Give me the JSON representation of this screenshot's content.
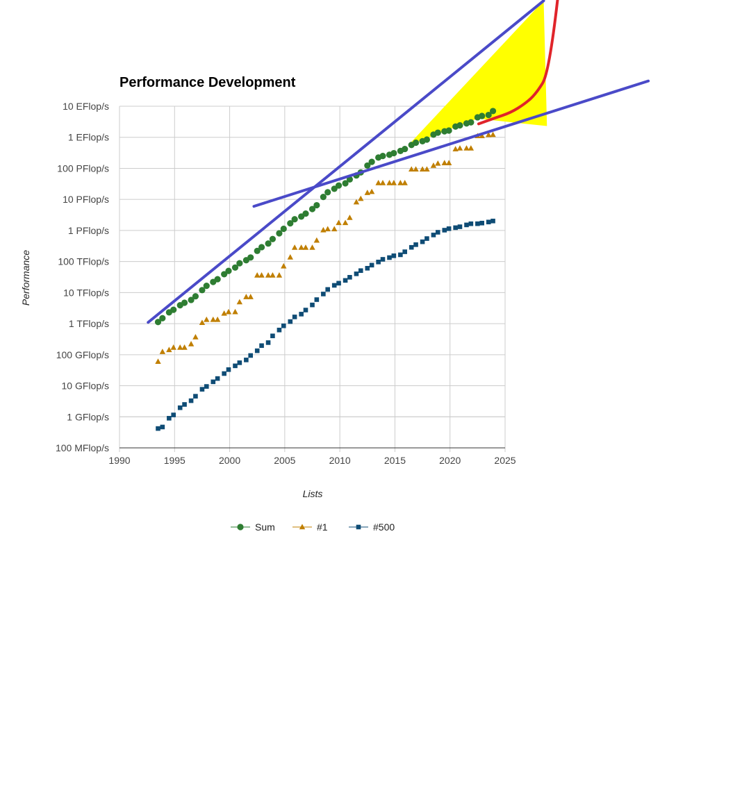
{
  "chart_data": {
    "type": "scatter",
    "title": "Performance Development",
    "xlabel": "Lists",
    "ylabel": "Performance",
    "y_scale": "log",
    "xlim": [
      1990,
      2025
    ],
    "x_ticks": [
      "1990",
      "1995",
      "2000",
      "2005",
      "2010",
      "2015",
      "2020",
      "2025"
    ],
    "ylim_gflops": [
      0.1,
      10000000000
    ],
    "y_ticks": [
      {
        "label": "10 EFlop/s",
        "gflops": 10000000000
      },
      {
        "label": "1 EFlop/s",
        "gflops": 1000000000
      },
      {
        "label": "100 PFlop/s",
        "gflops": 100000000
      },
      {
        "label": "10 PFlop/s",
        "gflops": 10000000
      },
      {
        "label": "1 PFlop/s",
        "gflops": 1000000
      },
      {
        "label": "100 TFlop/s",
        "gflops": 100000
      },
      {
        "label": "10 TFlop/s",
        "gflops": 10000
      },
      {
        "label": "1 TFlop/s",
        "gflops": 1000
      },
      {
        "label": "100 GFlop/s",
        "gflops": 100
      },
      {
        "label": "10 GFlop/s",
        "gflops": 10
      },
      {
        "label": "1 GFlop/s",
        "gflops": 1
      },
      {
        "label": "100 MFlop/s",
        "gflops": 0.1
      }
    ],
    "grid": true,
    "legend_position": "bottom",
    "series": [
      {
        "name": "Sum",
        "color": "#2e7d32",
        "marker": "circle",
        "points": [
          [
            1993.5,
            1130
          ],
          [
            1993.9,
            1500
          ],
          [
            1994.5,
            2300
          ],
          [
            1994.9,
            2800
          ],
          [
            1995.5,
            3900
          ],
          [
            1995.9,
            4700
          ],
          [
            1996.5,
            5800
          ],
          [
            1996.9,
            7600
          ],
          [
            1997.5,
            12000
          ],
          [
            1997.9,
            16500
          ],
          [
            1998.5,
            22000
          ],
          [
            1998.9,
            27000
          ],
          [
            1999.5,
            39000
          ],
          [
            1999.9,
            50000
          ],
          [
            2000.5,
            64000
          ],
          [
            2000.9,
            88000
          ],
          [
            2001.5,
            110000
          ],
          [
            2001.9,
            135000
          ],
          [
            2002.5,
            220000
          ],
          [
            2002.9,
            290000
          ],
          [
            2003.5,
            380000
          ],
          [
            2003.9,
            530000
          ],
          [
            2004.5,
            810000
          ],
          [
            2004.9,
            1130000
          ],
          [
            2005.5,
            1700000
          ],
          [
            2005.9,
            2300000
          ],
          [
            2006.5,
            2800000
          ],
          [
            2006.9,
            3500000
          ],
          [
            2007.5,
            4900000
          ],
          [
            2007.9,
            6500000
          ],
          [
            2008.5,
            12000000
          ],
          [
            2008.9,
            17000000
          ],
          [
            2009.5,
            22000000
          ],
          [
            2009.9,
            28000000
          ],
          [
            2010.5,
            33000000
          ],
          [
            2010.9,
            44000000
          ],
          [
            2011.5,
            59000000
          ],
          [
            2011.9,
            74000000
          ],
          [
            2012.5,
            123000000
          ],
          [
            2012.9,
            162000000
          ],
          [
            2013.5,
            223000000
          ],
          [
            2013.9,
            250000000
          ],
          [
            2014.5,
            274000000
          ],
          [
            2014.9,
            309000000
          ],
          [
            2015.5,
            363000000
          ],
          [
            2015.9,
            420000000
          ],
          [
            2016.5,
            567000000
          ],
          [
            2016.9,
            672000000
          ],
          [
            2017.5,
            749000000
          ],
          [
            2017.9,
            845000000
          ],
          [
            2018.5,
            1220000000
          ],
          [
            2018.9,
            1410000000
          ],
          [
            2019.5,
            1560000000
          ],
          [
            2019.9,
            1650000000
          ],
          [
            2020.5,
            2220000000
          ],
          [
            2020.9,
            2430000000
          ],
          [
            2021.5,
            2800000000
          ],
          [
            2021.9,
            3040000000
          ],
          [
            2022.5,
            4400000000
          ],
          [
            2022.9,
            4860000000
          ],
          [
            2023.5,
            5240000000
          ],
          [
            2023.9,
            7000000000
          ]
        ]
      },
      {
        "name": "#1",
        "color": "#c07f00",
        "marker": "triangle",
        "points": [
          [
            1993.5,
            60
          ],
          [
            1993.9,
            124
          ],
          [
            1994.5,
            143
          ],
          [
            1994.9,
            170
          ],
          [
            1995.5,
            170
          ],
          [
            1995.9,
            170
          ],
          [
            1996.5,
            220
          ],
          [
            1996.9,
            368
          ],
          [
            1997.5,
            1068
          ],
          [
            1997.9,
            1338
          ],
          [
            1998.5,
            1338
          ],
          [
            1998.9,
            1338
          ],
          [
            1999.5,
            2121
          ],
          [
            1999.9,
            2379
          ],
          [
            2000.5,
            2379
          ],
          [
            2000.9,
            4938
          ],
          [
            2001.5,
            7226
          ],
          [
            2001.9,
            7226
          ],
          [
            2002.5,
            35860
          ],
          [
            2002.9,
            35860
          ],
          [
            2003.5,
            35860
          ],
          [
            2003.9,
            35860
          ],
          [
            2004.5,
            35860
          ],
          [
            2004.9,
            70720
          ],
          [
            2005.5,
            136800
          ],
          [
            2005.9,
            280600
          ],
          [
            2006.5,
            280600
          ],
          [
            2006.9,
            280600
          ],
          [
            2007.5,
            280600
          ],
          [
            2007.9,
            478200
          ],
          [
            2008.5,
            1026000
          ],
          [
            2008.9,
            1105000
          ],
          [
            2009.5,
            1105000
          ],
          [
            2009.9,
            1759000
          ],
          [
            2010.5,
            1759000
          ],
          [
            2010.9,
            2566000
          ],
          [
            2011.5,
            8162000
          ],
          [
            2011.9,
            10510000
          ],
          [
            2012.5,
            16320000
          ],
          [
            2012.9,
            17590000
          ],
          [
            2013.5,
            33860000
          ],
          [
            2013.9,
            33860000
          ],
          [
            2014.5,
            33860000
          ],
          [
            2014.9,
            33860000
          ],
          [
            2015.5,
            33860000
          ],
          [
            2015.9,
            33860000
          ],
          [
            2016.5,
            93010000
          ],
          [
            2016.9,
            93010000
          ],
          [
            2017.5,
            93010000
          ],
          [
            2017.9,
            93010000
          ],
          [
            2018.5,
            122300000
          ],
          [
            2018.9,
            143500000
          ],
          [
            2019.5,
            148600000
          ],
          [
            2019.9,
            148600000
          ],
          [
            2020.5,
            415500000
          ],
          [
            2020.9,
            442000000
          ],
          [
            2021.5,
            442000000
          ],
          [
            2021.9,
            442000000
          ],
          [
            2022.5,
            1102000000
          ],
          [
            2022.9,
            1102000000
          ],
          [
            2023.5,
            1194000000
          ],
          [
            2023.9,
            1206000000
          ]
        ]
      },
      {
        "name": "#500",
        "color": "#0f4c75",
        "marker": "square",
        "points": [
          [
            1993.5,
            0.42
          ],
          [
            1993.9,
            0.47
          ],
          [
            1994.5,
            0.9
          ],
          [
            1994.9,
            1.15
          ],
          [
            1995.5,
            1.96
          ],
          [
            1995.9,
            2.5
          ],
          [
            1996.5,
            3.3
          ],
          [
            1996.9,
            4.6
          ],
          [
            1997.5,
            7.7
          ],
          [
            1997.9,
            9.5
          ],
          [
            1998.5,
            13.4
          ],
          [
            1998.9,
            17.1
          ],
          [
            1999.5,
            24.7
          ],
          [
            1999.9,
            33.1
          ],
          [
            2000.5,
            43.8
          ],
          [
            2000.9,
            55.1
          ],
          [
            2001.5,
            67.8
          ],
          [
            2001.9,
            94.3
          ],
          [
            2002.5,
            134
          ],
          [
            2002.9,
            196
          ],
          [
            2003.5,
            245
          ],
          [
            2003.9,
            403
          ],
          [
            2004.5,
            624
          ],
          [
            2004.9,
            851
          ],
          [
            2005.5,
            1166
          ],
          [
            2005.9,
            1646
          ],
          [
            2006.5,
            2026
          ],
          [
            2006.9,
            2737
          ],
          [
            2007.5,
            4005
          ],
          [
            2007.9,
            5929
          ],
          [
            2008.5,
            9000
          ],
          [
            2008.9,
            12640
          ],
          [
            2009.5,
            17100
          ],
          [
            2009.9,
            20050
          ],
          [
            2010.5,
            24670
          ],
          [
            2010.9,
            31120
          ],
          [
            2011.5,
            40190
          ],
          [
            2011.9,
            50940
          ],
          [
            2012.5,
            60820
          ],
          [
            2012.9,
            76500
          ],
          [
            2013.5,
            96620
          ],
          [
            2013.9,
            117800
          ],
          [
            2014.5,
            133700
          ],
          [
            2014.9,
            153400
          ],
          [
            2015.5,
            164700
          ],
          [
            2015.9,
            206300
          ],
          [
            2016.5,
            286100
          ],
          [
            2016.9,
            349300
          ],
          [
            2017.5,
            432200
          ],
          [
            2017.9,
            548300
          ],
          [
            2018.5,
            715600
          ],
          [
            2018.9,
            874800
          ],
          [
            2019.5,
            1022000
          ],
          [
            2019.9,
            1142000
          ],
          [
            2020.5,
            1230000
          ],
          [
            2020.9,
            1317000
          ],
          [
            2021.5,
            1511000
          ],
          [
            2021.9,
            1646000
          ],
          [
            2022.5,
            1650000
          ],
          [
            2022.9,
            1730000
          ],
          [
            2023.5,
            1870000
          ],
          [
            2023.9,
            2020000
          ]
        ]
      }
    ],
    "annotations": {
      "trend_color": "#4a4ac8",
      "curve_color": "#e0242a",
      "highlight_color": "#ffff00",
      "steep_trend": [
        [
          1992.6,
          1100
        ],
        [
          2028.5,
          25000000000000
        ]
      ],
      "shallow_trend": [
        [
          2002.2,
          6000000
        ],
        [
          2038,
          65000000000
        ]
      ],
      "highlight_region": [
        [
          2016.2,
          550000000
        ],
        [
          2028.5,
          25000000000000
        ],
        [
          2028.8,
          2300000000
        ],
        [
          2022.5,
          4000000000
        ]
      ],
      "steep_curve": [
        [
          2022.6,
          2700000000
        ],
        [
          2024,
          4100000000
        ],
        [
          2025.5,
          6200000000
        ],
        [
          2026.8,
          12000000000
        ],
        [
          2027.8,
          25000000000
        ],
        [
          2029,
          120000000000
        ],
        [
          2030.5,
          5000000000000000
        ]
      ]
    }
  }
}
